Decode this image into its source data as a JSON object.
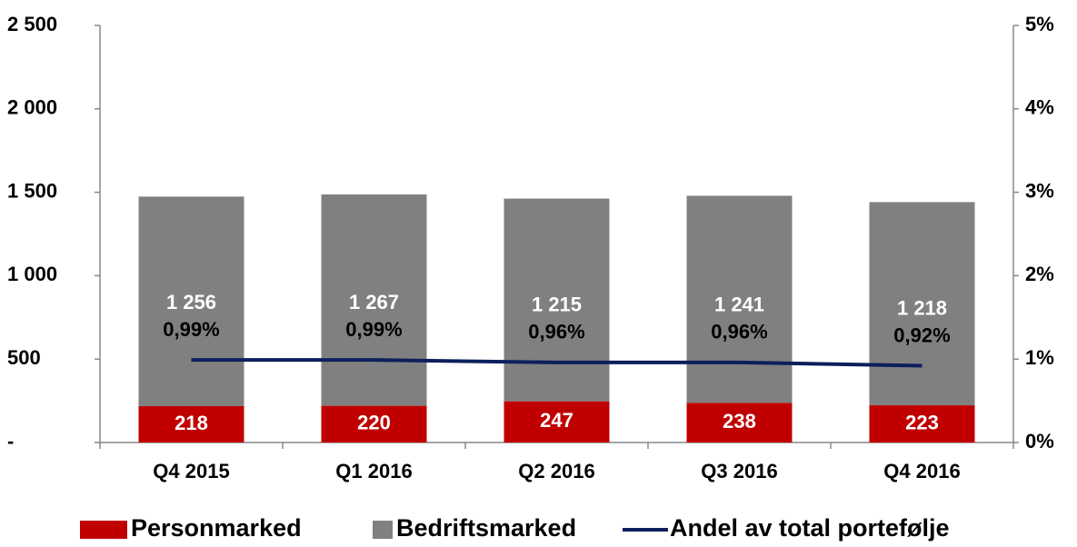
{
  "chart_data": {
    "type": "bar",
    "stacked": true,
    "categories": [
      "Q4 2015",
      "Q1 2016",
      "Q2 2016",
      "Q3 2016",
      "Q4 2016"
    ],
    "series": [
      {
        "name": "Personmarked",
        "color": "#c00000",
        "values": [
          218,
          220,
          247,
          238,
          223
        ]
      },
      {
        "name": "Bedriftsmarked",
        "color": "#808080",
        "values": [
          1256,
          1267,
          1215,
          1241,
          1218
        ],
        "value_labels": [
          "1 256",
          "1 267",
          "1 215",
          "1 241",
          "1 218"
        ]
      },
      {
        "name": "Andel av total portefølje",
        "color": "#0d1f5c",
        "type": "line",
        "axis": "y2",
        "values": [
          0.99,
          0.99,
          0.96,
          0.96,
          0.92
        ],
        "value_labels": [
          "0,99%",
          "0,99%",
          "0,96%",
          "0,96%",
          "0,92%"
        ]
      }
    ],
    "ylim": [
      0,
      2500
    ],
    "yticks": [
      {
        "value": 0,
        "label": "-"
      },
      500,
      {
        "value": 1000,
        "label": "1 000"
      },
      {
        "value": 1500,
        "label": "1 500"
      },
      {
        "value": 2000,
        "label": "2 000"
      },
      {
        "value": 2500,
        "label": "2 500"
      }
    ],
    "y2lim": [
      0,
      5
    ],
    "y2ticks": [
      {
        "value": 0,
        "label": "0%"
      },
      {
        "value": 1,
        "label": "1%"
      },
      {
        "value": 2,
        "label": "2%"
      },
      {
        "value": 3,
        "label": "3%"
      },
      {
        "value": 4,
        "label": "4%"
      },
      {
        "value": 5,
        "label": "5%"
      }
    ],
    "legend": "bottom",
    "grid": false
  }
}
